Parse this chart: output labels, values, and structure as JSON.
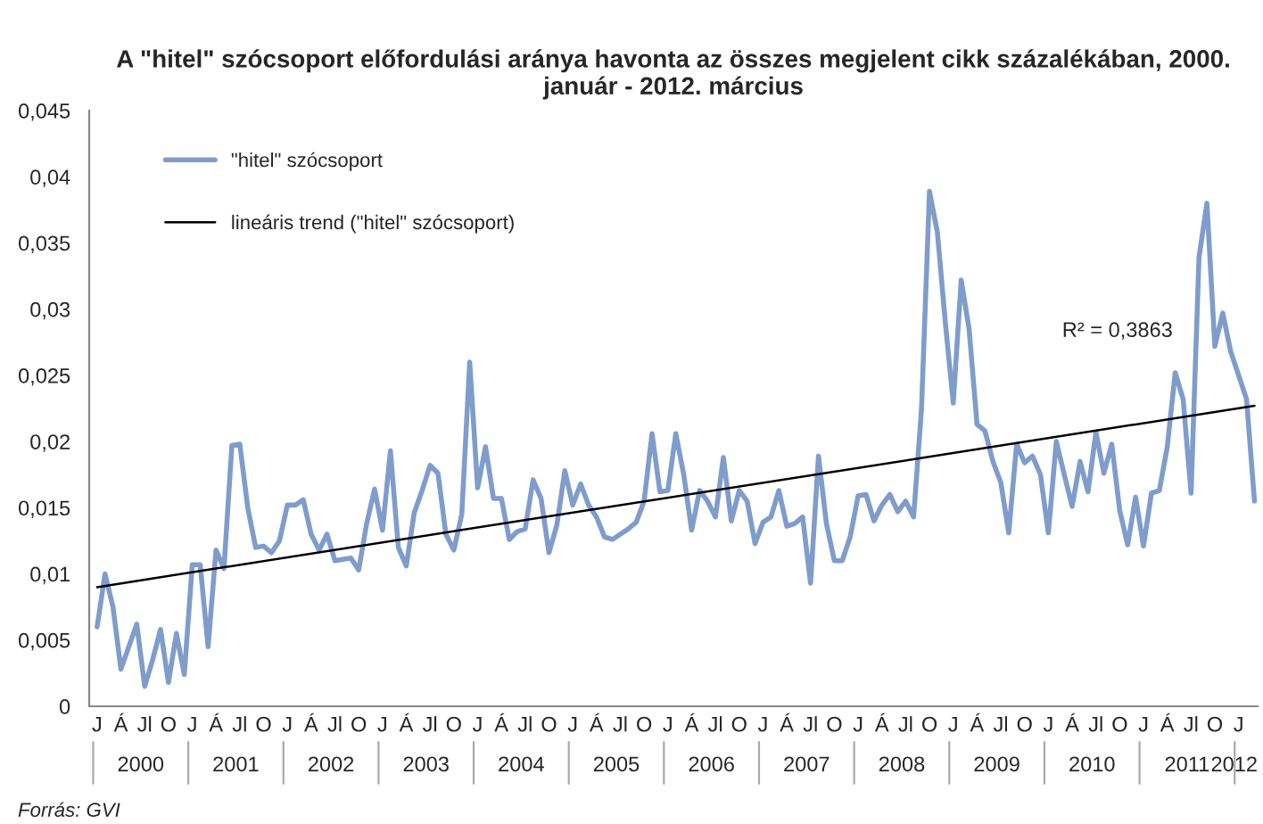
{
  "chart_data": {
    "type": "line",
    "title": "A \"hitel\" szócsoport előfordulási aránya havonta az összes megjelent cikk százalékában, 2000. január - 2012. március",
    "categories": [
      "J",
      null,
      null,
      "Á",
      null,
      null,
      "Jl",
      null,
      null,
      "O",
      null,
      null,
      "J",
      null,
      null,
      "Á",
      null,
      null,
      "Jl",
      null,
      null,
      "O",
      null,
      null,
      "J",
      null,
      null,
      "Á",
      null,
      null,
      "Jl",
      null,
      null,
      "O",
      null,
      null,
      "J",
      null,
      null,
      "Á",
      null,
      null,
      "Jl",
      null,
      null,
      "O",
      null,
      null,
      "J",
      null,
      null,
      "Á",
      null,
      null,
      "Jl",
      null,
      null,
      "O",
      null,
      null,
      "J",
      null,
      null,
      "Á",
      null,
      null,
      "Jl",
      null,
      null,
      "O",
      null,
      null,
      "J",
      null,
      null,
      "Á",
      null,
      null,
      "Jl",
      null,
      null,
      "O",
      null,
      null,
      "J",
      null,
      null,
      "Á",
      null,
      null,
      "Jl",
      null,
      null,
      "O",
      null,
      null,
      "J",
      null,
      null,
      "Á",
      null,
      null,
      "Jl",
      null,
      null,
      "O",
      null,
      null,
      "J",
      null,
      null,
      "Á",
      null,
      null,
      "Jl",
      null,
      null,
      "O",
      null,
      null,
      "J",
      null,
      null,
      "Á",
      null,
      null,
      "Jl",
      null,
      null,
      "O",
      null,
      null,
      "J",
      null,
      null,
      "Á",
      null,
      null,
      "Jl",
      null,
      null,
      "O",
      null,
      null,
      "J",
      null,
      null
    ],
    "series": [
      {
        "name": "\"hitel\" szócsoport",
        "color": "#7f9ccb",
        "values": [
          0.006,
          0.01,
          0.0075,
          0.0028,
          0.0045,
          0.0062,
          0.0015,
          0.0035,
          0.0058,
          0.0018,
          0.0055,
          0.0024,
          0.0107,
          0.0107,
          0.0045,
          0.0118,
          0.0104,
          0.0197,
          0.0198,
          0.015,
          0.012,
          0.0121,
          0.0116,
          0.0125,
          0.0152,
          0.0152,
          0.0156,
          0.013,
          0.0118,
          0.013,
          0.011,
          0.0111,
          0.0112,
          0.0103,
          0.0138,
          0.0164,
          0.0133,
          0.0193,
          0.012,
          0.0106,
          0.0146,
          0.0163,
          0.0182,
          0.0176,
          0.013,
          0.0118,
          0.0145,
          0.026,
          0.0165,
          0.0196,
          0.0157,
          0.0157,
          0.0126,
          0.0132,
          0.0134,
          0.0171,
          0.0157,
          0.0116,
          0.0137,
          0.0178,
          0.0152,
          0.0168,
          0.0152,
          0.0143,
          0.0128,
          0.0126,
          0.013,
          0.0134,
          0.0139,
          0.0155,
          0.0206,
          0.0162,
          0.0163,
          0.0206,
          0.0175,
          0.0133,
          0.0163,
          0.0155,
          0.0143,
          0.0188,
          0.014,
          0.0163,
          0.0155,
          0.0123,
          0.0139,
          0.0143,
          0.0163,
          0.0136,
          0.0138,
          0.0143,
          0.0093,
          0.0189,
          0.0138,
          0.011,
          0.011,
          0.0128,
          0.0159,
          0.016,
          0.014,
          0.0152,
          0.016,
          0.0147,
          0.0155,
          0.0143,
          0.0225,
          0.0389,
          0.0358,
          0.029,
          0.0229,
          0.0322,
          0.0285,
          0.0213,
          0.0208,
          0.0185,
          0.0169,
          0.0131,
          0.0198,
          0.0184,
          0.0189,
          0.0175,
          0.0131,
          0.02,
          0.0175,
          0.0151,
          0.0185,
          0.0162,
          0.0207,
          0.0176,
          0.0198,
          0.0148,
          0.0122,
          0.0158,
          0.0121,
          0.0161,
          0.0163,
          0.0196,
          0.0252,
          0.0232,
          0.0161,
          0.0339,
          0.038,
          0.0272,
          0.0297,
          0.0268,
          0.025,
          0.0232,
          0.0155
        ]
      },
      {
        "name": "lineáris trend (\"hitel\" szócsoport)",
        "color": "#000000",
        "values": [
          0.009,
          null,
          null,
          null,
          null,
          null,
          null,
          null,
          null,
          null,
          null,
          null,
          null,
          null,
          null,
          null,
          null,
          null,
          null,
          null,
          null,
          null,
          null,
          null,
          null,
          null,
          null,
          null,
          null,
          null,
          null,
          null,
          null,
          null,
          null,
          null,
          null,
          null,
          null,
          null,
          null,
          null,
          null,
          null,
          null,
          null,
          null,
          null,
          null,
          null,
          null,
          null,
          null,
          null,
          null,
          null,
          null,
          null,
          null,
          null,
          null,
          null,
          null,
          null,
          null,
          null,
          null,
          null,
          null,
          null,
          null,
          null,
          null,
          null,
          null,
          null,
          null,
          null,
          null,
          null,
          null,
          null,
          null,
          null,
          null,
          null,
          null,
          null,
          null,
          null,
          null,
          null,
          null,
          null,
          null,
          null,
          null,
          null,
          null,
          null,
          null,
          null,
          null,
          null,
          null,
          null,
          null,
          null,
          null,
          null,
          null,
          null,
          null,
          null,
          null,
          null,
          null,
          null,
          null,
          null,
          null,
          null,
          null,
          null,
          null,
          null,
          null,
          null,
          null,
          null,
          null,
          null,
          null,
          null,
          null,
          null,
          null,
          null,
          null,
          null,
          null,
          null,
          null,
          null,
          null,
          null,
          0.0227
        ]
      }
    ],
    "ylim": [
      0,
      0.045
    ],
    "yticks": [
      0,
      {
        "value": 0.005,
        "label": "0,005"
      },
      {
        "value": 0.01,
        "label": "0,01"
      },
      {
        "value": 0.015,
        "label": "0,015"
      },
      {
        "value": 0.02,
        "label": "0,02"
      },
      {
        "value": 0.025,
        "label": "0,025"
      },
      {
        "value": 0.03,
        "label": "0,03"
      },
      {
        "value": 0.035,
        "label": "0,035"
      },
      {
        "value": 0.04,
        "label": "0,04"
      },
      {
        "value": 0.045,
        "label": "0,045"
      }
    ],
    "legend": "top left",
    "annotations": [
      "2000",
      "2001",
      "2002",
      "2003",
      "2004",
      "2005",
      "2006",
      "2007",
      "2008",
      "2009",
      "2010",
      "2011",
      "2012",
      "R² = 0,3863",
      "Forrás: GVI"
    ]
  }
}
